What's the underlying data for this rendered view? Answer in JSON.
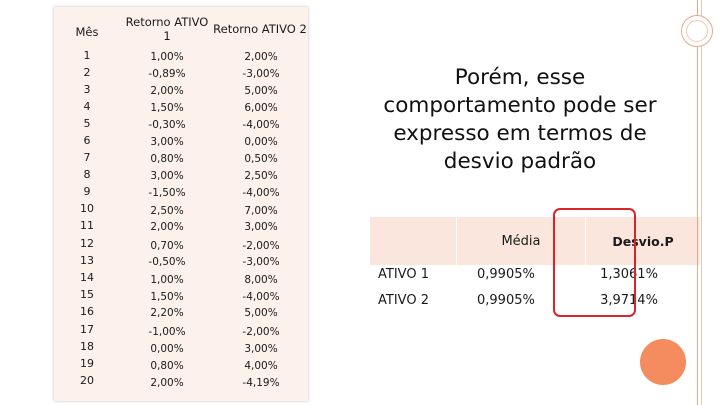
{
  "left_table": {
    "headers": {
      "mes": "Mês",
      "ativo1_line1": "Retorno ATIVO",
      "ativo1_line2": "1",
      "ativo2": "Retorno ATIVO 2"
    },
    "rows": [
      {
        "mes": "1",
        "a1": "1,00%",
        "a2": "2,00%"
      },
      {
        "mes": "2",
        "a1": "-0,89%",
        "a2": "-3,00%"
      },
      {
        "mes": "3",
        "a1": "2,00%",
        "a2": "5,00%"
      },
      {
        "mes": "4",
        "a1": "1,50%",
        "a2": "6,00%"
      },
      {
        "mes": "5",
        "a1": "-0,30%",
        "a2": "-4,00%"
      },
      {
        "mes": "6",
        "a1": "3,00%",
        "a2": "0,00%"
      },
      {
        "mes": "7",
        "a1": "0,80%",
        "a2": "0,50%"
      },
      {
        "mes": "8",
        "a1": "3,00%",
        "a2": "2,50%"
      },
      {
        "mes": "9",
        "a1": "-1,50%",
        "a2": "-4,00%"
      },
      {
        "mes": "10",
        "a1": "2,50%",
        "a2": "7,00%"
      },
      {
        "mes": "11",
        "a1": "2,00%",
        "a2": "3,00%"
      },
      {
        "mes": "12",
        "a1": "0,70%",
        "a2": "-2,00%"
      },
      {
        "mes": "13",
        "a1": "-0,50%",
        "a2": "-3,00%"
      },
      {
        "mes": "14",
        "a1": "1,00%",
        "a2": "8,00%"
      },
      {
        "mes": "15",
        "a1": "1,50%",
        "a2": "-4,00%"
      },
      {
        "mes": "16",
        "a1": "2,20%",
        "a2": "5,00%"
      },
      {
        "mes": "17",
        "a1": "-1,00%",
        "a2": "-2,00%"
      },
      {
        "mes": "18",
        "a1": "0,00%",
        "a2": "3,00%"
      },
      {
        "mes": "19",
        "a1": "0,80%",
        "a2": "4,00%"
      },
      {
        "mes": "20",
        "a1": "2,00%",
        "a2": "-4,19%"
      }
    ]
  },
  "headline": {
    "lines": [
      "Porém, esse",
      "comportamento pode ser",
      "expresso em termos de",
      "desvio padrão"
    ]
  },
  "summary_table": {
    "header_media": "Média",
    "header_desvio": "Desvio.P",
    "rows": [
      {
        "label": "ATIVO 1",
        "media": "0,9905%",
        "desvio": "1,3061%"
      },
      {
        "label": "ATIVO 2",
        "media": "0,9905%",
        "desvio": "3,9714%"
      }
    ]
  },
  "colors": {
    "accent": "#f48c5f",
    "highlight_border": "#d9252a",
    "table_bg": "#fdf1ec"
  }
}
